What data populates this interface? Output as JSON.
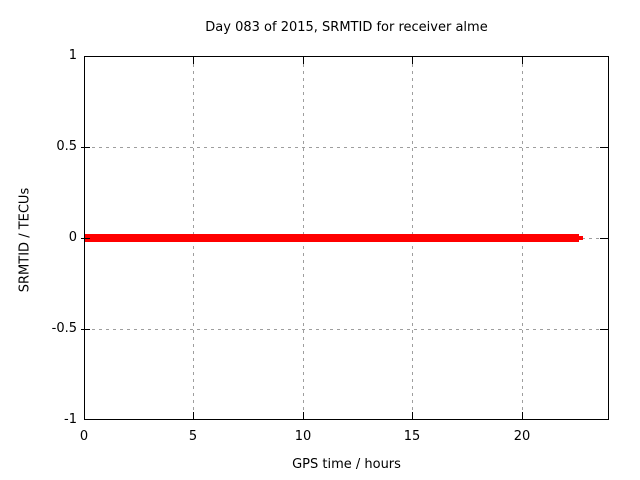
{
  "chart": {
    "title": "Day 083 of 2015, SRMTID for receiver alme",
    "xlabel": "GPS time / hours",
    "ylabel": "SRMTID / TECUs"
  },
  "chart_data": {
    "type": "line",
    "title": "Day 083 of 2015, SRMTID for receiver alme",
    "xlabel": "GPS time / hours",
    "ylabel": "SRMTID / TECUs",
    "xlim": [
      0,
      24
    ],
    "ylim": [
      -1,
      1
    ],
    "grid": true,
    "legend": "none",
    "xticks": [
      {
        "value": 0,
        "label": "0"
      },
      {
        "value": 5,
        "label": "5"
      },
      {
        "value": 10,
        "label": "10"
      },
      {
        "value": 15,
        "label": "15"
      },
      {
        "value": 20,
        "label": "20"
      }
    ],
    "yticks": [
      {
        "value": -1,
        "label": "-1"
      },
      {
        "value": -0.5,
        "label": "-0.5"
      },
      {
        "value": 0,
        "label": "0"
      },
      {
        "value": 0.5,
        "label": "0.5"
      },
      {
        "value": 1,
        "label": "1"
      }
    ],
    "series": [
      {
        "name": "SRMTID",
        "color": "#ff0000",
        "x": [
          0,
          22.8
        ],
        "y": [
          0,
          0
        ]
      }
    ],
    "colors": {
      "line": "#ff0000",
      "grid": "#9e9e9e",
      "border": "#000000",
      "background": "#ffffff",
      "text": "#000000"
    }
  }
}
